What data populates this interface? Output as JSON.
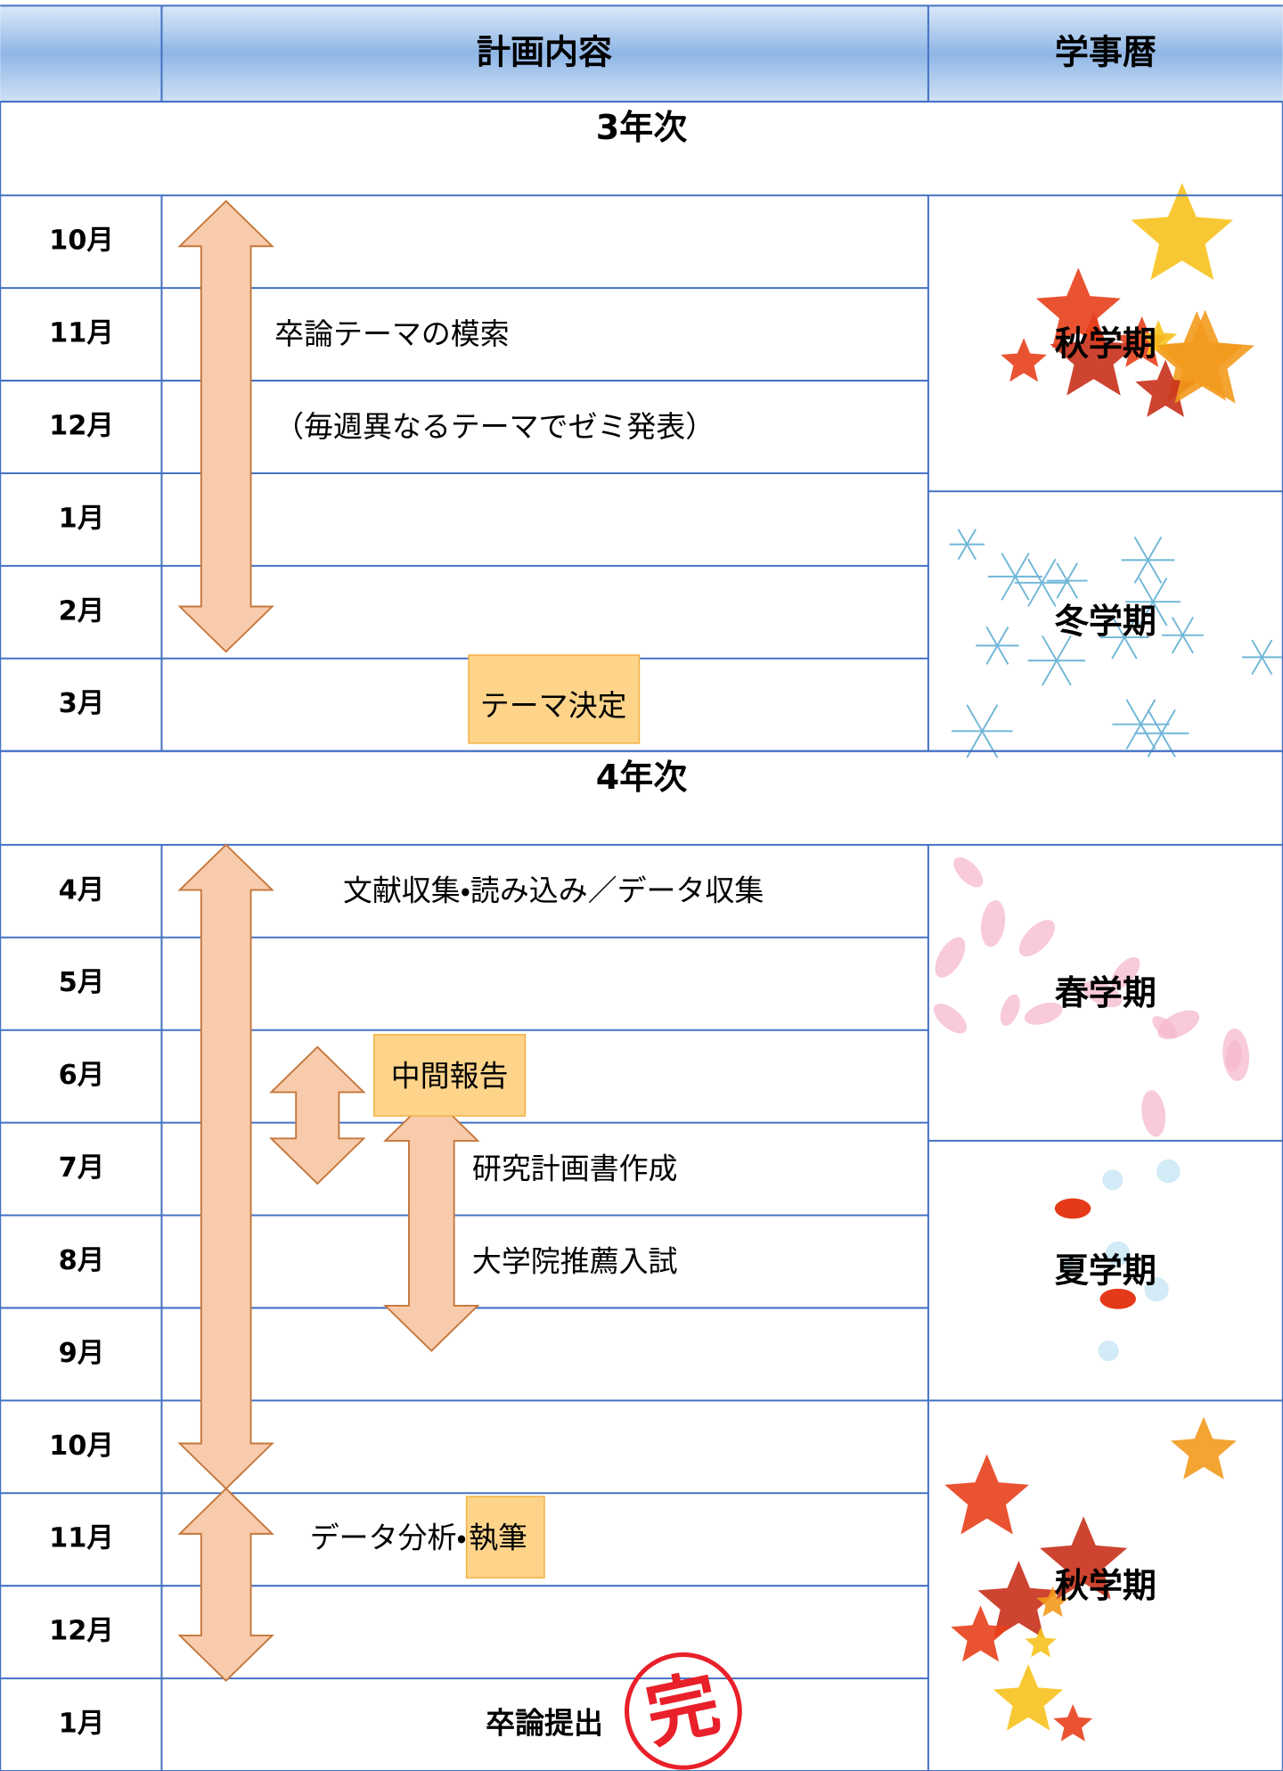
{
  "header": {
    "plan": "計画内容",
    "calendar": "学事暦"
  },
  "years": [
    {
      "title": "3年次",
      "months": [
        "10月",
        "11月",
        "12月",
        "1月",
        "2月",
        "3月"
      ]
    },
    {
      "title": "4年次",
      "months": [
        "4月",
        "5月",
        "6月",
        "7月",
        "8月",
        "9月",
        "10月",
        "11月",
        "12月",
        "1月"
      ]
    }
  ],
  "plans": {
    "theme_search": "卒論テーマの模索",
    "seminar": "（毎週異なるテーマでゼミ発表）",
    "theme_decided": "テーマ決定",
    "literature": "文献収集・読み込み／データ収集",
    "interim": "中間報告",
    "research_plan": "研究計画書作成",
    "grad_exam": "大学院推薦入試",
    "analysis": "データ分析・",
    "writing": "執筆",
    "submit": "卒論提出"
  },
  "terms": [
    "秋学期",
    "冬学期",
    "春学期",
    "夏学期",
    "秋学期"
  ],
  "stamp": "完"
}
